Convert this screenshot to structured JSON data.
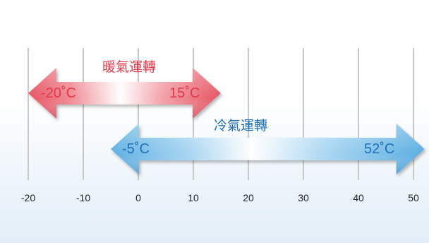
{
  "axis": {
    "ticks": [
      -20,
      -10,
      0,
      10,
      20,
      30,
      40,
      50
    ],
    "tick_labels": [
      "-20",
      "-10",
      "0",
      "10",
      "20",
      "30",
      "40",
      "50"
    ],
    "range": [
      -20,
      50
    ]
  },
  "heating": {
    "label": "暖氣運轉",
    "min": -20,
    "max": 15,
    "min_label": "-20˚C",
    "max_label": "15˚C",
    "color": "#e03a4a"
  },
  "cooling": {
    "label": "冷氣運轉",
    "min": -5,
    "max": 52,
    "min_label": "-5˚C",
    "max_label": "52˚C",
    "color": "#1e6fb8"
  }
}
